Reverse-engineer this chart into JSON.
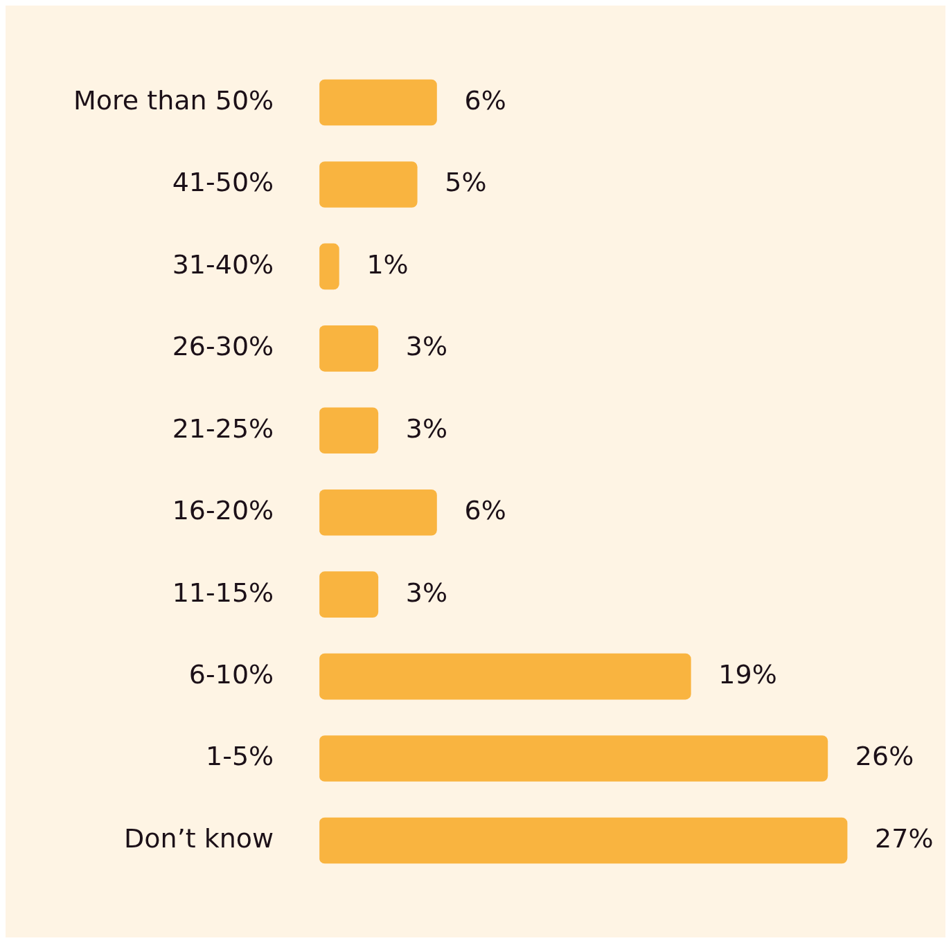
{
  "chart_data": {
    "type": "bar",
    "orientation": "horizontal",
    "categories": [
      "More than 50%",
      "41-50%",
      "31-40%",
      "26-30%",
      "21-25%",
      "16-20%",
      "11-15%",
      "6-10%",
      "1-5%",
      "Don’t know"
    ],
    "values": [
      6,
      5,
      1,
      3,
      3,
      6,
      3,
      19,
      26,
      27
    ],
    "value_labels": [
      "6%",
      "5%",
      "1%",
      "3%",
      "3%",
      "6%",
      "3%",
      "19%",
      "26%",
      "27%"
    ],
    "color": "#f9b440",
    "legend": false
  }
}
